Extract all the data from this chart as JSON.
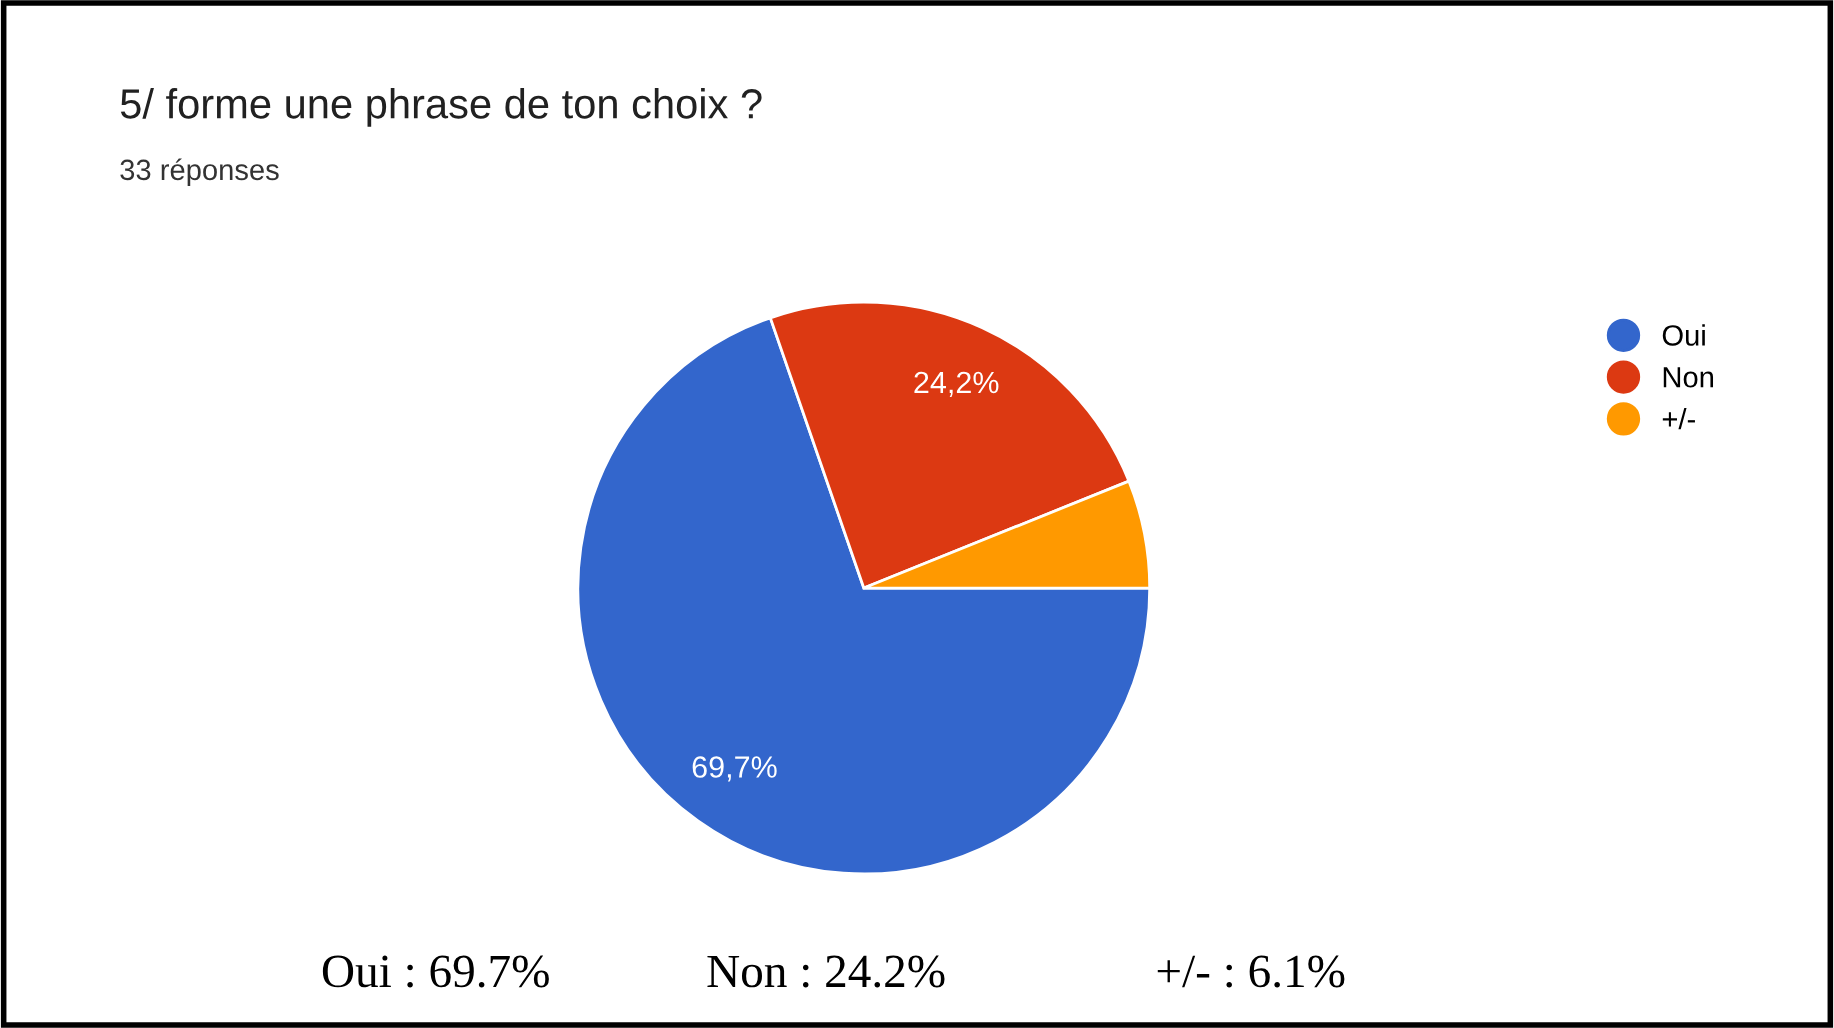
{
  "chart_data": {
    "type": "pie",
    "title": "5/ forme une phrase de ton choix ?",
    "subtitle": "33 réponses",
    "categories": [
      "Oui",
      "Non",
      "+/-"
    ],
    "values": [
      69.7,
      24.2,
      6.1
    ],
    "colors": [
      "#3366cc",
      "#dc3912",
      "#ff9900"
    ],
    "value_labels": [
      "69,7%",
      "24,2%",
      null
    ],
    "legend": "right",
    "annotations": [
      "Oui : 69.7%",
      "Non : 24.2%",
      "+/- : 6.1%"
    ]
  }
}
